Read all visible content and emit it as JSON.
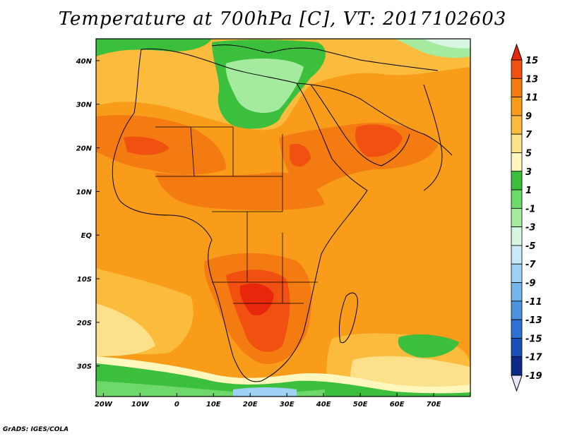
{
  "title": "Temperature at 700hPa [C], VT: 2017102603",
  "credit": "GrADS: IGES/COLA",
  "map": {
    "projection": "lat-lon",
    "lon_range": [
      -22,
      80
    ],
    "lat_range": [
      -37,
      45
    ],
    "lon_ticks": [
      {
        "value": -20,
        "label": "20W"
      },
      {
        "value": -10,
        "label": "10W"
      },
      {
        "value": 0,
        "label": "0"
      },
      {
        "value": 10,
        "label": "10E"
      },
      {
        "value": 20,
        "label": "20E"
      },
      {
        "value": 30,
        "label": "30E"
      },
      {
        "value": 40,
        "label": "40E"
      },
      {
        "value": 50,
        "label": "50E"
      },
      {
        "value": 60,
        "label": "60E"
      },
      {
        "value": 70,
        "label": "70E"
      }
    ],
    "lat_ticks": [
      {
        "value": 40,
        "label": "40N"
      },
      {
        "value": 30,
        "label": "30N"
      },
      {
        "value": 20,
        "label": "20N"
      },
      {
        "value": 10,
        "label": "10N"
      },
      {
        "value": 0,
        "label": "EQ"
      },
      {
        "value": -10,
        "label": "10S"
      },
      {
        "value": -20,
        "label": "20S"
      },
      {
        "value": -30,
        "label": "30S"
      }
    ]
  },
  "colorbar": {
    "labels": [
      "15",
      "13",
      "11",
      "9",
      "7",
      "5",
      "3",
      "1",
      "-1",
      "-3",
      "-5",
      "-7",
      "-9",
      "-11",
      "-13",
      "-15",
      "-17",
      "-19"
    ],
    "colors": [
      "#e8260b",
      "#f05010",
      "#f47a12",
      "#f89c1a",
      "#fbbb3c",
      "#fde08a",
      "#fff7bd",
      "#3cbf3c",
      "#6fd86a",
      "#a4eba0",
      "#d8f7e2",
      "#c9e9f8",
      "#9fd1f5",
      "#75b5ec",
      "#4d94e0",
      "#2d72d2",
      "#1a4db8",
      "#0a2a8a",
      "#0b1670"
    ]
  }
}
